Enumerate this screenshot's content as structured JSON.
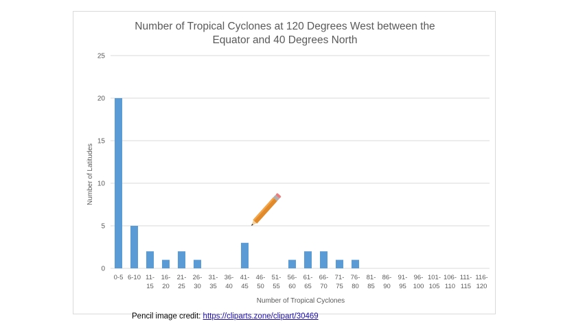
{
  "chart_data": {
    "type": "bar",
    "title_lines": [
      "Number of Tropical Cyclones at 120 Degrees West between the",
      "Equator and 40 Degrees North"
    ],
    "xlabel": "Number of Tropical Cyclones",
    "ylabel": "Number of Latitudes",
    "ylim": [
      0,
      25
    ],
    "yticks": [
      0,
      5,
      10,
      15,
      20,
      25
    ],
    "grid": true,
    "legend": "none",
    "bar_color": "#5b9bd5",
    "categories": [
      [
        "0-5"
      ],
      [
        "6-10"
      ],
      [
        "11-",
        "15"
      ],
      [
        "16-",
        "20"
      ],
      [
        "21-",
        "25"
      ],
      [
        "26-",
        "30"
      ],
      [
        "31-",
        "35"
      ],
      [
        "36-",
        "40"
      ],
      [
        "41-",
        "45"
      ],
      [
        "46-",
        "50"
      ],
      [
        "51-",
        "55"
      ],
      [
        "56-",
        "60"
      ],
      [
        "61-",
        "65"
      ],
      [
        "66-",
        "70"
      ],
      [
        "71-",
        "75"
      ],
      [
        "76-",
        "80"
      ],
      [
        "81-",
        "85"
      ],
      [
        "86-",
        "90"
      ],
      [
        "91-",
        "95"
      ],
      [
        "96-",
        "100"
      ],
      [
        "101-",
        "105"
      ],
      [
        "106-",
        "110"
      ],
      [
        "111-",
        "115"
      ],
      [
        "116-",
        "120"
      ]
    ],
    "values": [
      20,
      5,
      2,
      1,
      2,
      1,
      0,
      0,
      3,
      0,
      0,
      1,
      2,
      2,
      1,
      1,
      0,
      0,
      0,
      0,
      0,
      0,
      0,
      0
    ]
  },
  "pencil_icon": "pencil-icon",
  "credit": {
    "prefix": "Pencil image credit: ",
    "link": "https://cliparts.zone/clipart/30469"
  }
}
